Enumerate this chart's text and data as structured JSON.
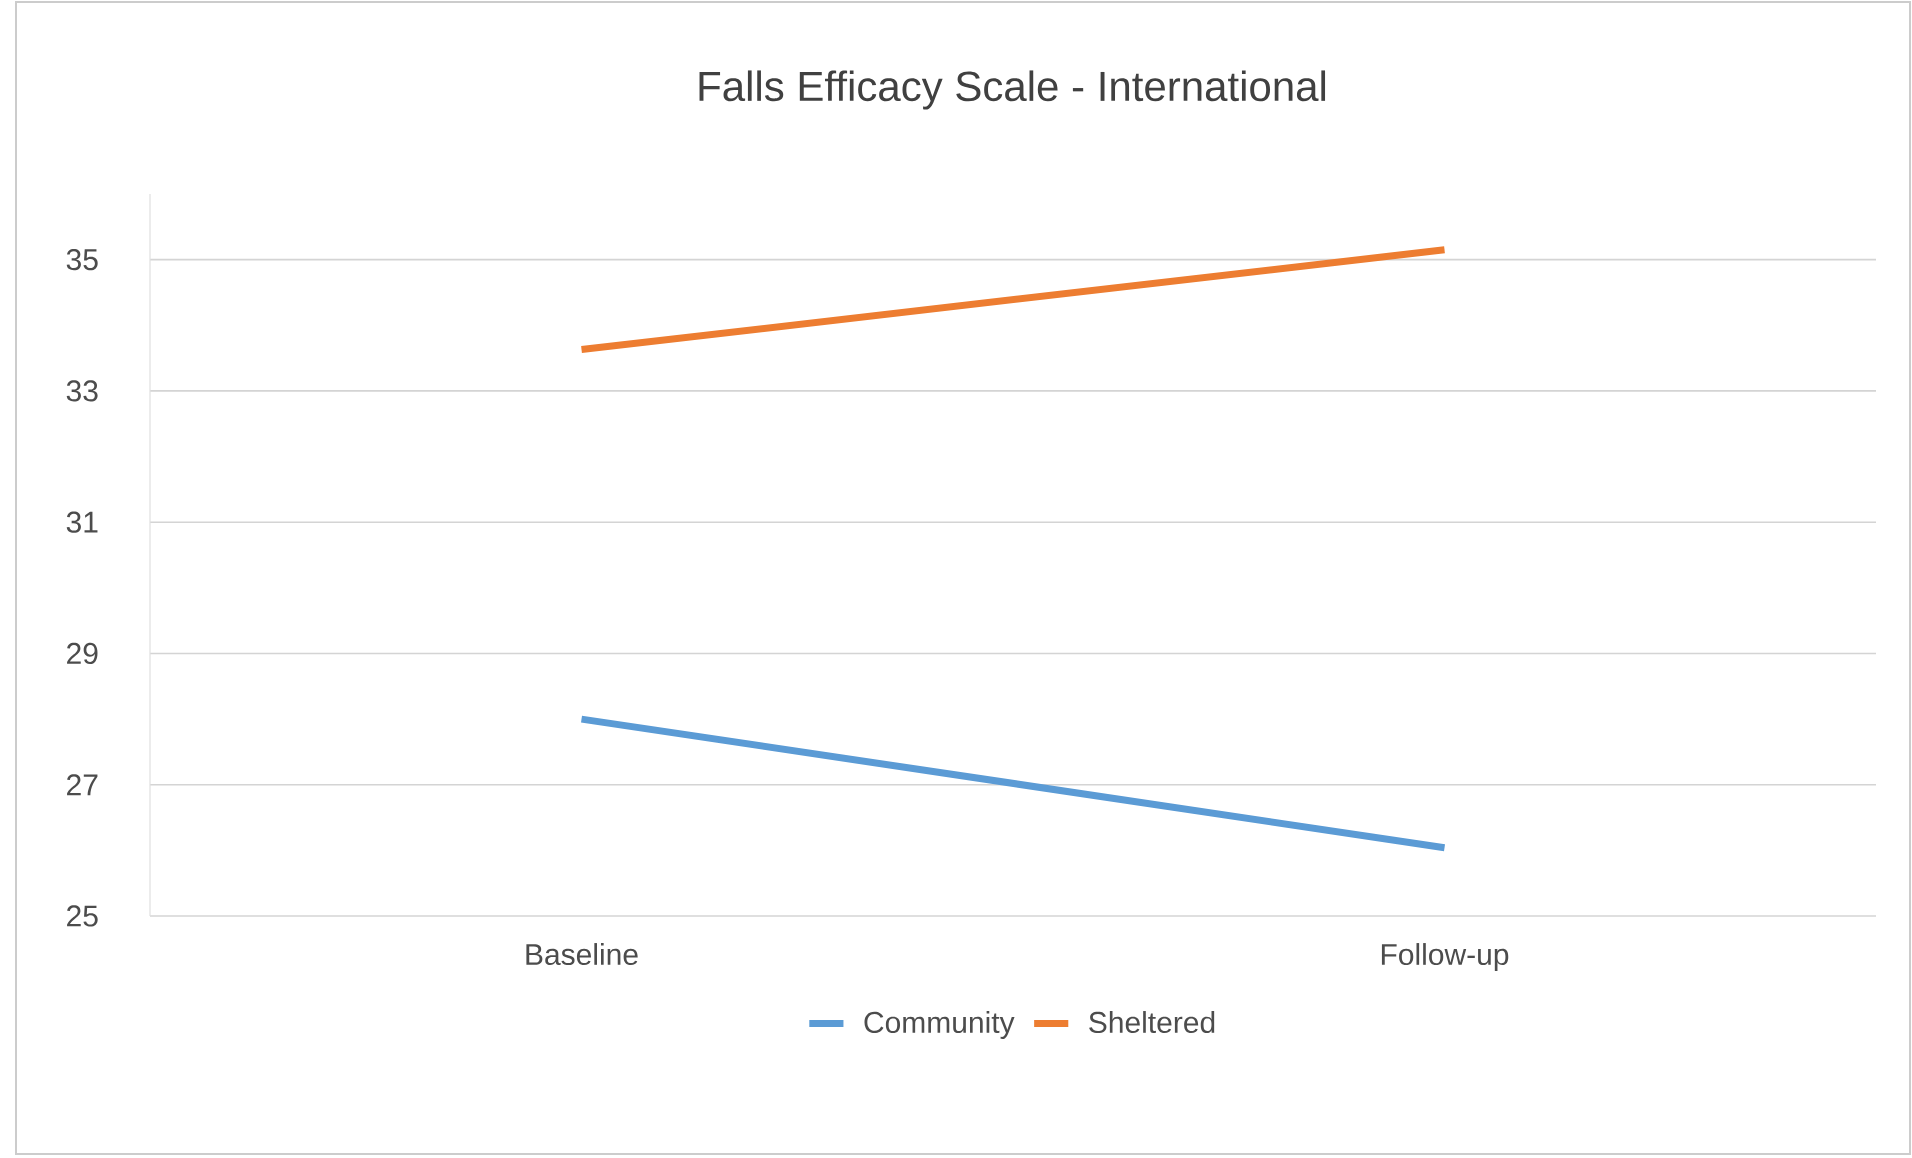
{
  "chart_data": {
    "type": "line",
    "title": "Falls Efficacy Scale - International",
    "categories": [
      "Baseline",
      "Follow-up"
    ],
    "series": [
      {
        "name": "Community",
        "color": "#5b9bd5",
        "values": [
          28.0,
          26.04
        ]
      },
      {
        "name": "Sheltered",
        "color": "#ed7d31",
        "values": [
          33.63,
          35.15
        ]
      }
    ],
    "ylim": [
      25,
      36
    ],
    "yticks": [
      25,
      27,
      29,
      31,
      33,
      35
    ],
    "grid": "y",
    "legend": "bottom",
    "marker": "none",
    "line_style": "solid"
  }
}
